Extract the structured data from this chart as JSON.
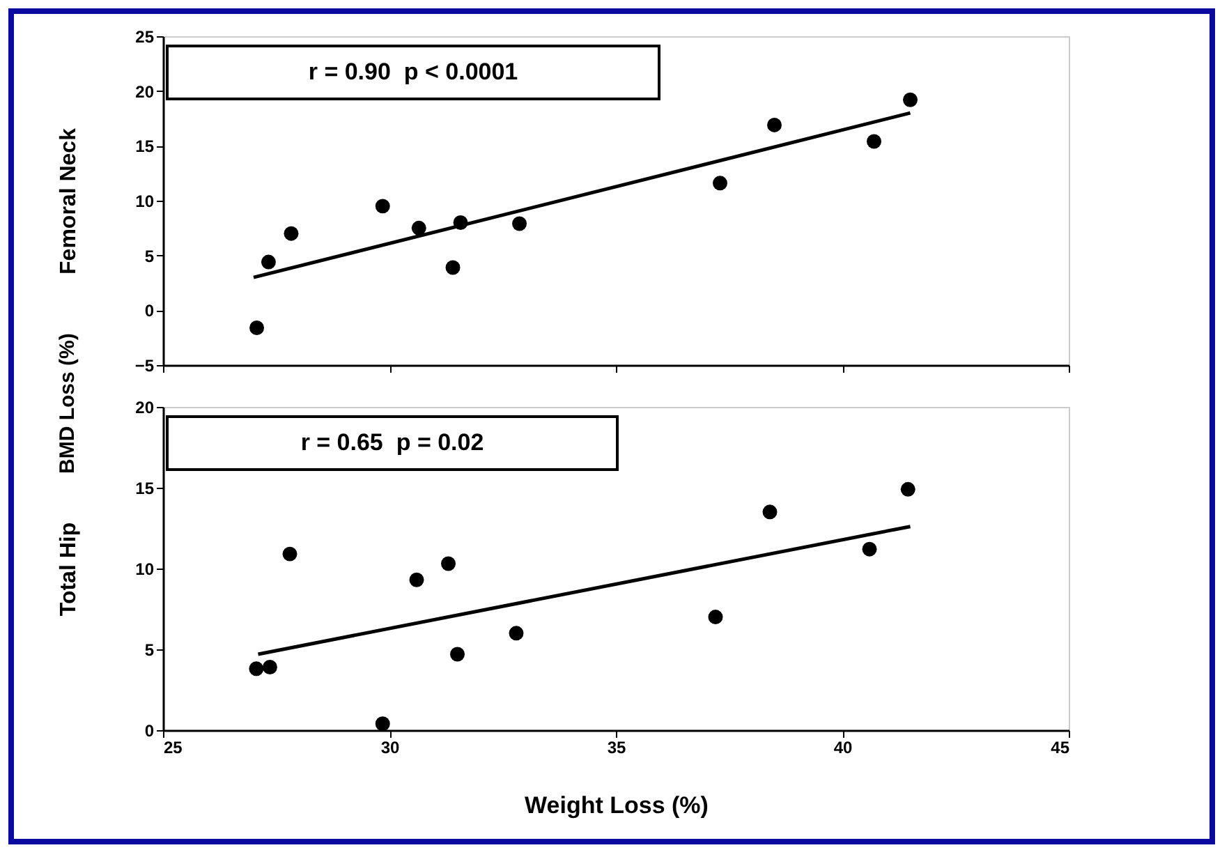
{
  "chart_data": [
    {
      "type": "scatter",
      "ylabel": "Femoral Neck",
      "annotations": [
        "r = 0.90  p < 0.0001",
        "BMD Loss (%)"
      ],
      "xlim": [
        25,
        45
      ],
      "xticks": [
        25,
        30,
        35,
        40,
        45
      ],
      "ylim": [
        -5,
        25
      ],
      "yticks": [
        -5,
        0,
        5,
        10,
        15,
        20,
        25
      ],
      "tick_labels": "y",
      "grid": false,
      "series": [
        {
          "marker": "circle",
          "color": "#000000",
          "x": [
            27.07,
            27.33,
            27.83,
            29.85,
            30.65,
            31.4,
            31.57,
            32.87,
            37.3,
            38.5,
            40.7,
            41.5
          ],
          "values": [
            -1.6,
            4.4,
            7.0,
            9.5,
            7.5,
            3.9,
            8.0,
            7.9,
            11.6,
            16.9,
            15.4,
            19.2
          ]
        },
        {
          "type": "line",
          "marker": "none",
          "color": "#000000",
          "x": [
            27.0,
            41.5
          ],
          "values": [
            3.0,
            18.0
          ]
        }
      ]
    },
    {
      "type": "scatter",
      "ylabel": "Total Hip",
      "xlabel": "Weight Loss (%)",
      "annotations": [
        "r = 0.65  p = 0.02"
      ],
      "xlim": [
        25,
        45
      ],
      "xticks": [
        25,
        30,
        35,
        40,
        45
      ],
      "ylim": [
        0,
        20
      ],
      "yticks": [
        0,
        5,
        10,
        15,
        20
      ],
      "grid": false,
      "series": [
        {
          "marker": "circle",
          "color": "#000000",
          "x": [
            27.06,
            27.36,
            27.8,
            29.85,
            30.6,
            31.3,
            31.5,
            32.8,
            37.2,
            38.4,
            40.6,
            41.45
          ],
          "values": [
            3.8,
            3.9,
            10.9,
            0.4,
            9.3,
            10.3,
            4.7,
            6.0,
            7.0,
            13.5,
            11.2,
            14.9
          ]
        },
        {
          "type": "line",
          "marker": "none",
          "color": "#000000",
          "x": [
            27.1,
            41.5
          ],
          "values": [
            4.7,
            12.6
          ]
        }
      ]
    }
  ]
}
